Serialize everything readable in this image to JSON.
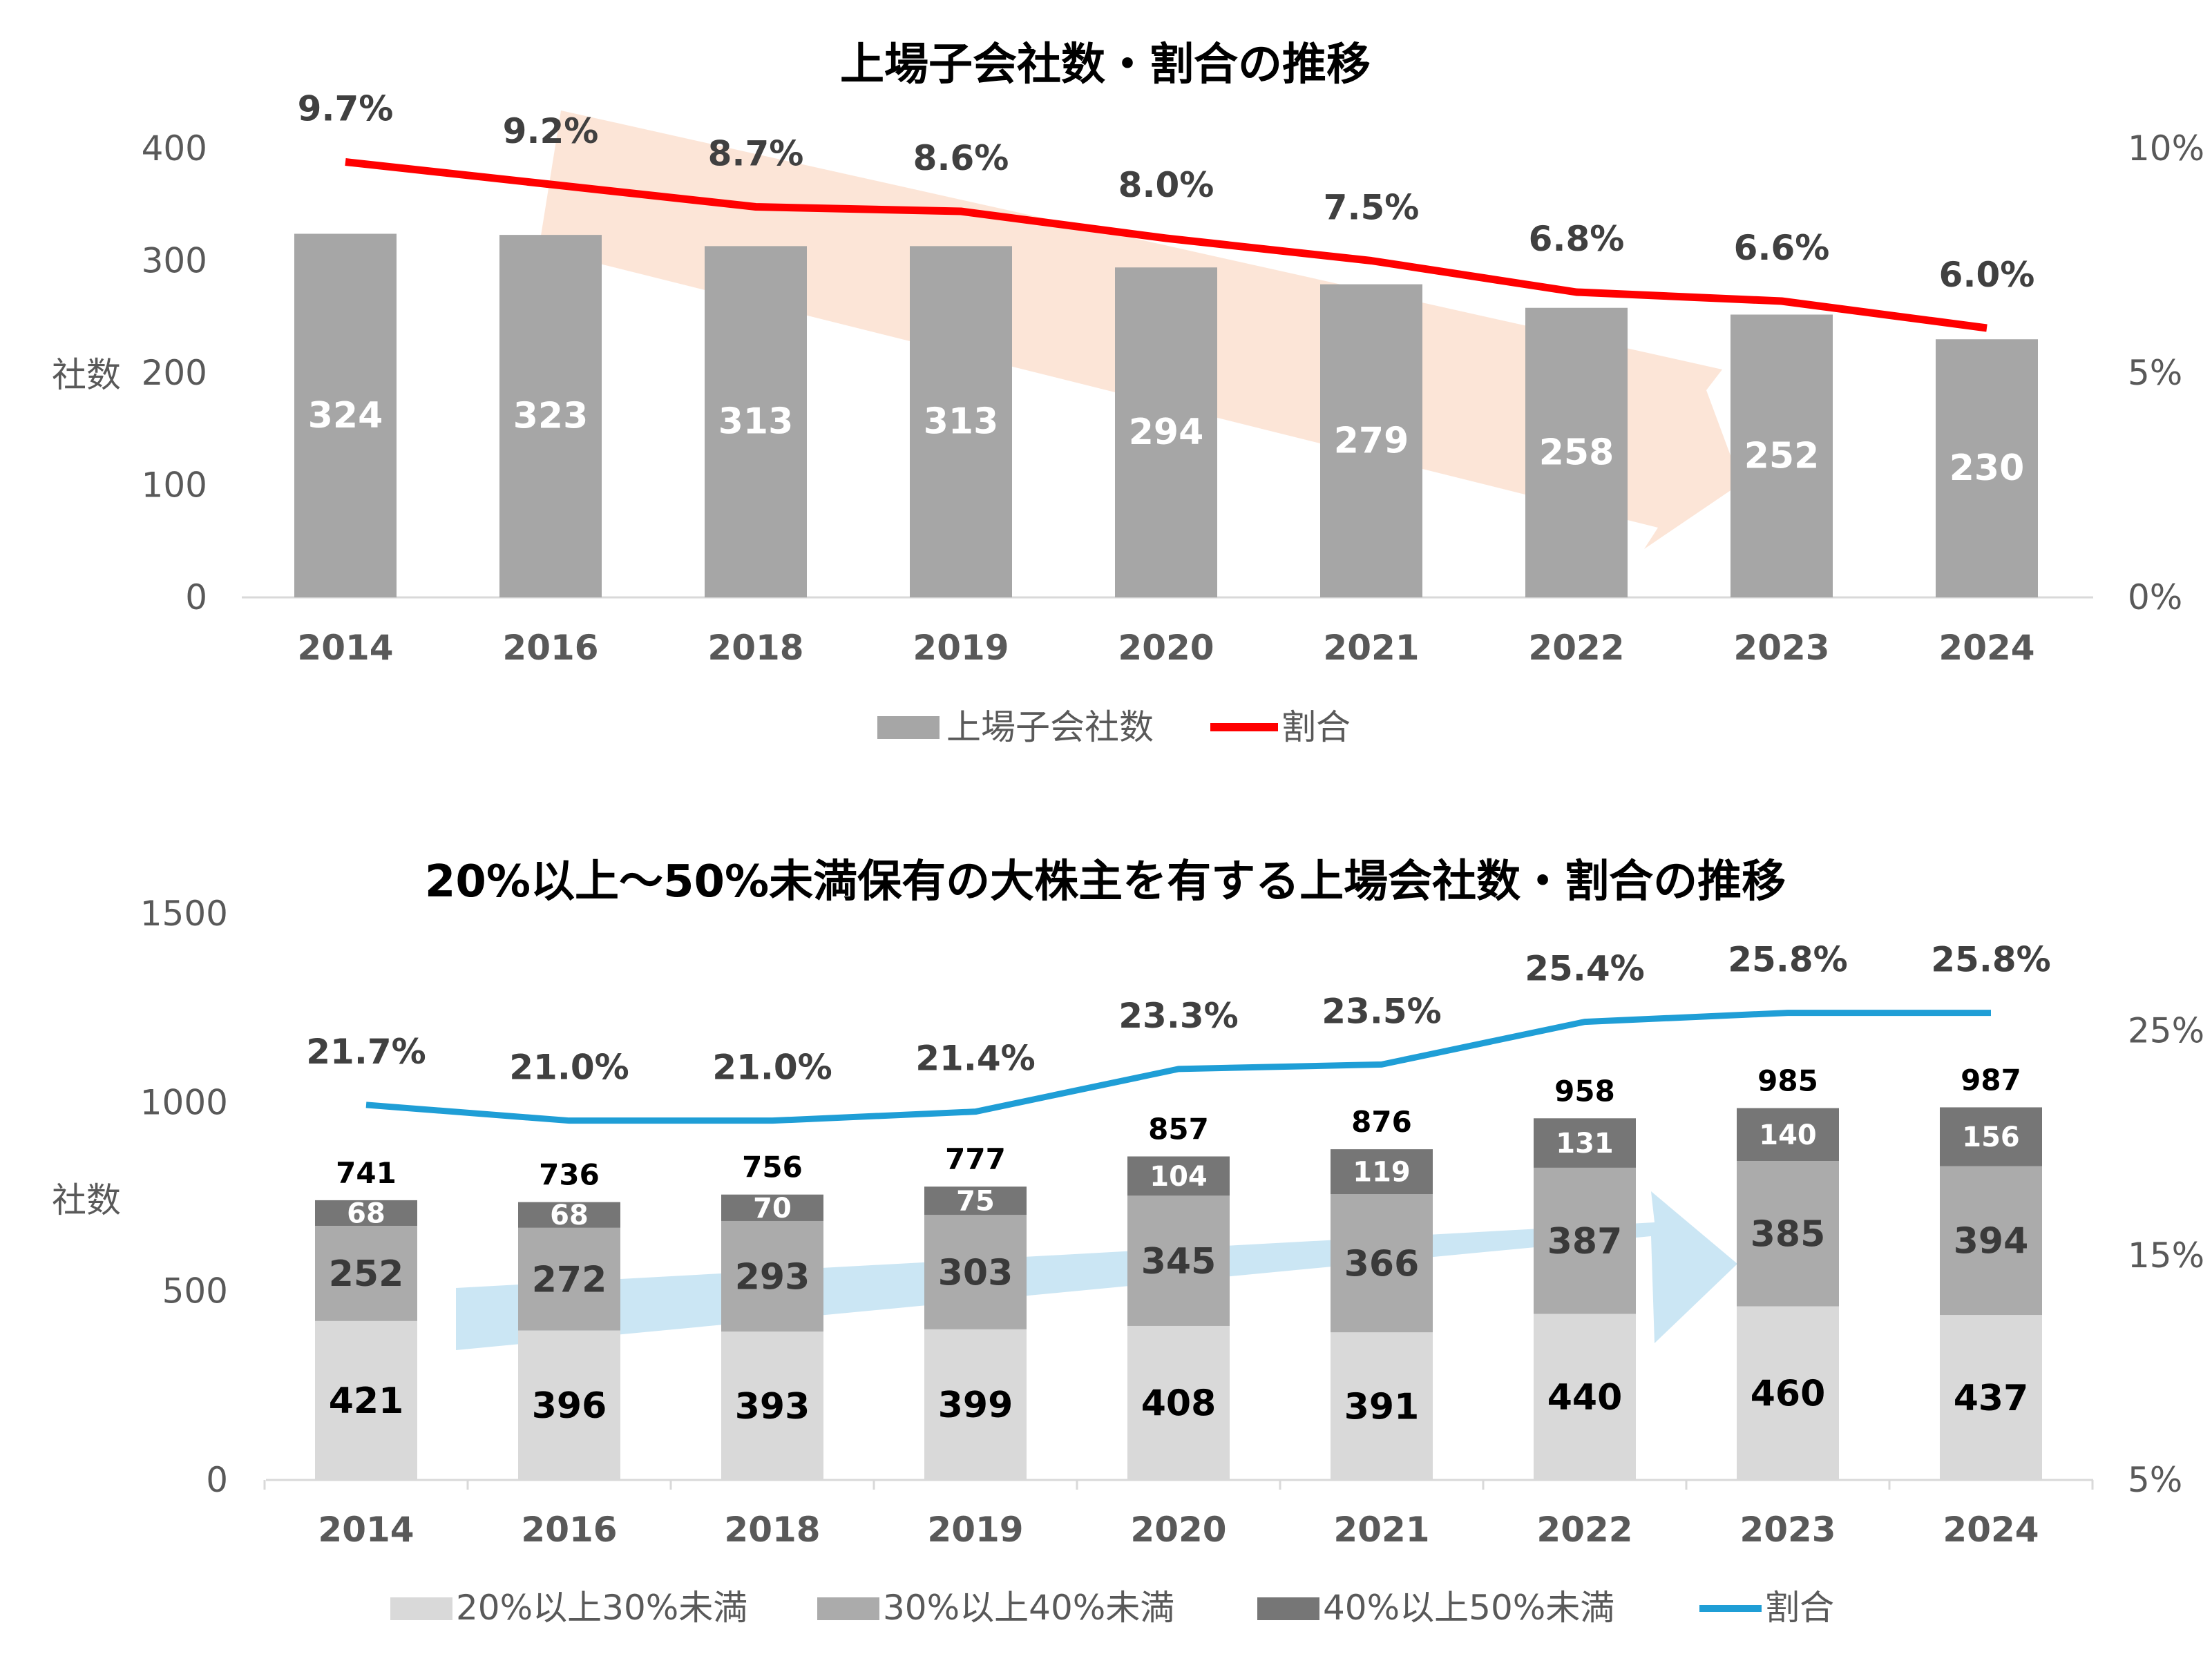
{
  "chart_data": [
    {
      "type": "bar+line",
      "title": "上場子会社数・割合の推移",
      "ylabel": "社数",
      "categories": [
        "2014",
        "2016",
        "2018",
        "2019",
        "2020",
        "2021",
        "2022",
        "2023",
        "2024"
      ],
      "y_ticks": [
        "0",
        "100",
        "200",
        "300",
        "400"
      ],
      "y2_ticks": [
        "0%",
        "5%",
        "10%"
      ],
      "ylim": [
        0,
        400
      ],
      "y2lim": [
        0,
        10
      ],
      "series": [
        {
          "name": "上場子会社数",
          "kind": "bar",
          "color": "#a6a6a6",
          "values": [
            324,
            323,
            313,
            313,
            294,
            279,
            258,
            252,
            230
          ]
        },
        {
          "name": "割合",
          "kind": "line",
          "axis": "secondary",
          "color": "#ff0000",
          "values": [
            9.7,
            9.2,
            8.7,
            8.6,
            8.0,
            7.5,
            6.8,
            6.6,
            6.0
          ],
          "labels": [
            "9.7%",
            "9.2%",
            "8.7%",
            "8.6%",
            "8.0%",
            "7.5%",
            "6.8%",
            "6.6%",
            "6.0%"
          ]
        }
      ],
      "trend_arrow": "down",
      "trend_color": "#fbe0d0",
      "legend": "bottom",
      "grid": false
    },
    {
      "type": "stacked-bar+line",
      "title": "20%以上～50%未満保有の大株主を有する上場会社数・割合の推移",
      "ylabel": "社数",
      "categories": [
        "2014",
        "2016",
        "2018",
        "2019",
        "2020",
        "2021",
        "2022",
        "2023",
        "2024"
      ],
      "y_ticks": [
        "0",
        "500",
        "1000",
        "1500"
      ],
      "y2_ticks": [
        "5%",
        "15%",
        "25%"
      ],
      "ylim": [
        0,
        1500
      ],
      "y2lim": [
        5,
        30
      ],
      "totals": [
        741,
        736,
        756,
        777,
        857,
        876,
        958,
        985,
        987
      ],
      "series": [
        {
          "name": "20%以上30%未満",
          "kind": "bar",
          "color": "#d9d9d9",
          "values": [
            421,
            396,
            393,
            399,
            408,
            391,
            440,
            460,
            437
          ]
        },
        {
          "name": "30%以上40%未満",
          "kind": "bar",
          "color": "#ababab",
          "values": [
            252,
            272,
            293,
            303,
            345,
            366,
            387,
            385,
            394
          ]
        },
        {
          "name": "40%以上50%未満",
          "kind": "bar",
          "color": "#767676",
          "values": [
            68,
            68,
            70,
            75,
            104,
            119,
            131,
            140,
            156
          ]
        },
        {
          "name": "割合",
          "kind": "line",
          "axis": "secondary",
          "color": "#1f9ed6",
          "values": [
            21.7,
            21.0,
            21.0,
            21.4,
            23.3,
            23.5,
            25.4,
            25.8,
            25.8
          ],
          "labels": [
            "21.7%",
            "21.0%",
            "21.0%",
            "21.4%",
            "23.3%",
            "23.5%",
            "25.4%",
            "25.8%",
            "25.8%"
          ]
        }
      ],
      "trend_arrow": "up",
      "trend_color": "#c5e3f3",
      "legend": "bottom",
      "grid": false
    }
  ]
}
